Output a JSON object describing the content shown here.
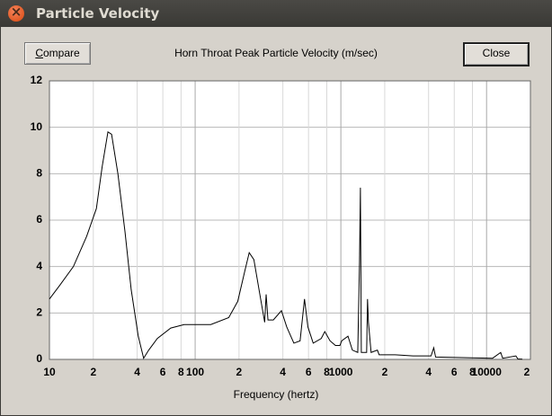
{
  "window": {
    "title": "Particle Velocity"
  },
  "buttons": {
    "compare": "Compare",
    "close": "Close"
  },
  "chart_data": {
    "type": "line",
    "title": "Horn Throat Peak Particle Velocity (m/sec)",
    "xlabel": "Frequency (hertz)",
    "x": [
      10,
      11.8,
      14.6,
      18,
      21,
      23,
      25.2,
      26.7,
      29.5,
      33,
      36.4,
      40.7,
      44.3,
      48,
      55,
      68,
      84,
      128,
      170,
      196,
      219,
      235,
      253,
      278,
      300,
      307,
      316,
      344,
      391,
      425,
      476,
      525,
      563,
      594,
      646,
      733,
      776,
      843,
      918,
      985,
      1014,
      1119,
      1200,
      1306,
      1343,
      1362,
      1382,
      1503,
      1524,
      1546,
      1613,
      1781,
      1831,
      2360,
      3130,
      4160,
      4340,
      4470,
      6280,
      11000,
      12500,
      12900,
      15900,
      16400,
      17600
    ],
    "values": [
      2.6,
      3.2,
      4.0,
      5.3,
      6.5,
      8.3,
      9.8,
      9.7,
      8.0,
      5.5,
      3.0,
      1.0,
      0.05,
      0.4,
      0.9,
      1.35,
      1.5,
      1.5,
      1.8,
      2.5,
      3.8,
      4.6,
      4.3,
      2.8,
      1.6,
      2.8,
      1.7,
      1.7,
      2.1,
      1.4,
      0.7,
      0.8,
      2.6,
      1.4,
      0.7,
      0.9,
      1.2,
      0.8,
      0.6,
      0.6,
      0.8,
      1.0,
      0.4,
      0.3,
      4.2,
      7.4,
      0.3,
      0.3,
      2.6,
      1.6,
      0.3,
      0.4,
      0.2,
      0.2,
      0.15,
      0.15,
      0.5,
      0.1,
      0.08,
      0.05,
      0.3,
      0.05,
      0.15,
      0.02,
      0.01
    ],
    "color": "#000000",
    "log_x": true,
    "grid": true,
    "xlim": [
      10,
      20000
    ],
    "xticks": [
      10,
      {
        "value": 20,
        "label": "2"
      },
      {
        "value": 40,
        "label": "4"
      },
      {
        "value": 60,
        "label": "6"
      },
      {
        "value": 80,
        "label": "8"
      },
      100,
      {
        "value": 200,
        "label": "2"
      },
      {
        "value": 400,
        "label": "4"
      },
      {
        "value": 600,
        "label": "6"
      },
      {
        "value": 800,
        "label": "8"
      },
      1000,
      {
        "value": 2000,
        "label": "2"
      },
      {
        "value": 4000,
        "label": "4"
      },
      {
        "value": 6000,
        "label": "6"
      },
      {
        "value": 8000,
        "label": "8"
      },
      10000,
      {
        "value": 20000,
        "label": "2"
      }
    ],
    "ylim": [
      0,
      12
    ],
    "yticks": [
      0,
      2,
      4,
      6,
      8,
      10,
      12
    ]
  }
}
